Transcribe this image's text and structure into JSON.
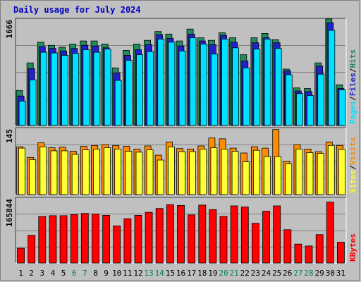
{
  "title": "Daily usage for July 2024",
  "chart_data": [
    {
      "type": "bar",
      "panel": "hits-files-pages",
      "ymax_label": "1666",
      "ylim": [
        0,
        1666
      ],
      "legend": [
        "Pages",
        "/",
        "Files",
        "/",
        "Hits"
      ],
      "colors": {
        "Hits": "#228b5a",
        "Files": "#2222cc",
        "Pages": "#00e0ff",
        "sep": "#000000"
      },
      "categories": [
        "1",
        "2",
        "3",
        "4",
        "5",
        "6",
        "7",
        "8",
        "9",
        "10",
        "11",
        "12",
        "13",
        "14",
        "15",
        "16",
        "17",
        "18",
        "19",
        "20",
        "21",
        "22",
        "23",
        "24",
        "25",
        "26",
        "27",
        "28",
        "29",
        "30",
        "31"
      ],
      "series": [
        {
          "name": "Hits",
          "values": [
            560,
            1000,
            1330,
            1280,
            1250,
            1300,
            1350,
            1350,
            1300,
            920,
            1200,
            1300,
            1360,
            1500,
            1460,
            1350,
            1540,
            1400,
            1360,
            1480,
            1400,
            1130,
            1400,
            1470,
            1370,
            900,
            600,
            590,
            1000,
            1700,
            650
          ]
        },
        {
          "name": "Files",
          "values": [
            470,
            910,
            1260,
            1230,
            1190,
            1230,
            1280,
            1270,
            1240,
            840,
            1120,
            1210,
            1290,
            1450,
            1390,
            1270,
            1460,
            1350,
            1290,
            1440,
            1330,
            1030,
            1320,
            1400,
            1320,
            870,
            550,
            540,
            950,
            1640,
            590
          ]
        },
        {
          "name": "Pages",
          "values": [
            390,
            730,
            1170,
            1160,
            1120,
            1150,
            1210,
            1170,
            1220,
            720,
            1040,
            1130,
            1180,
            1380,
            1330,
            1190,
            1400,
            1300,
            1140,
            1380,
            1240,
            920,
            1220,
            1380,
            1230,
            810,
            510,
            480,
            820,
            1520,
            570
          ]
        }
      ]
    },
    {
      "type": "bar",
      "panel": "visits-sites",
      "ymax_label": "145",
      "ylim": [
        0,
        145
      ],
      "legend": [
        "Sites",
        "/",
        "Visits"
      ],
      "colors": {
        "Visits": "#ff8c00",
        "Sites": "#ffff33",
        "sep": "#000000"
      },
      "categories": [
        "1",
        "2",
        "3",
        "4",
        "5",
        "6",
        "7",
        "8",
        "9",
        "10",
        "11",
        "12",
        "13",
        "14",
        "15",
        "16",
        "17",
        "18",
        "19",
        "20",
        "21",
        "22",
        "23",
        "24",
        "25",
        "26",
        "27",
        "28",
        "29",
        "30",
        "31"
      ],
      "series": [
        {
          "name": "Visits",
          "values": [
            108,
            84,
            117,
            106,
            107,
            98,
            109,
            111,
            113,
            111,
            109,
            103,
            110,
            89,
            119,
            104,
            103,
            110,
            128,
            126,
            105,
            94,
            108,
            105,
            147,
            75,
            113,
            103,
            97,
            119,
            111
          ]
        },
        {
          "name": "Sites",
          "values": [
            105,
            79,
            108,
            99,
            99,
            91,
            101,
            103,
            106,
            103,
            98,
            96,
            101,
            78,
            108,
            97,
            97,
            103,
            106,
            103,
            98,
            74,
            100,
            86,
            86,
            70,
            103,
            95,
            93,
            111,
            102
          ]
        }
      ]
    },
    {
      "type": "bar",
      "panel": "kbytes",
      "ymax_label": "165844",
      "ylim": [
        0,
        165844
      ],
      "legend": [
        "KBytes"
      ],
      "colors": {
        "KBytes": "#ff0000"
      },
      "categories": [
        "1",
        "2",
        "3",
        "4",
        "5",
        "6",
        "7",
        "8",
        "9",
        "10",
        "11",
        "12",
        "13",
        "14",
        "15",
        "16",
        "17",
        "18",
        "19",
        "20",
        "21",
        "22",
        "23",
        "24",
        "25",
        "26",
        "27",
        "28",
        "29",
        "30",
        "31"
      ],
      "series": [
        {
          "name": "KBytes",
          "values": [
            39000,
            73000,
            123000,
            125000,
            125000,
            128000,
            131000,
            129000,
            126000,
            98000,
            117000,
            126000,
            134000,
            144000,
            154000,
            152000,
            127000,
            153000,
            141000,
            123000,
            151000,
            148000,
            105000,
            137000,
            151000,
            88000,
            50000,
            45000,
            75000,
            161000,
            55000
          ]
        }
      ]
    }
  ],
  "x_tick_colors": {
    "weekday": "#000000",
    "weekend": "#00805a"
  },
  "weekend_days": [
    "6",
    "7",
    "13",
    "14",
    "20",
    "21",
    "27",
    "28"
  ]
}
